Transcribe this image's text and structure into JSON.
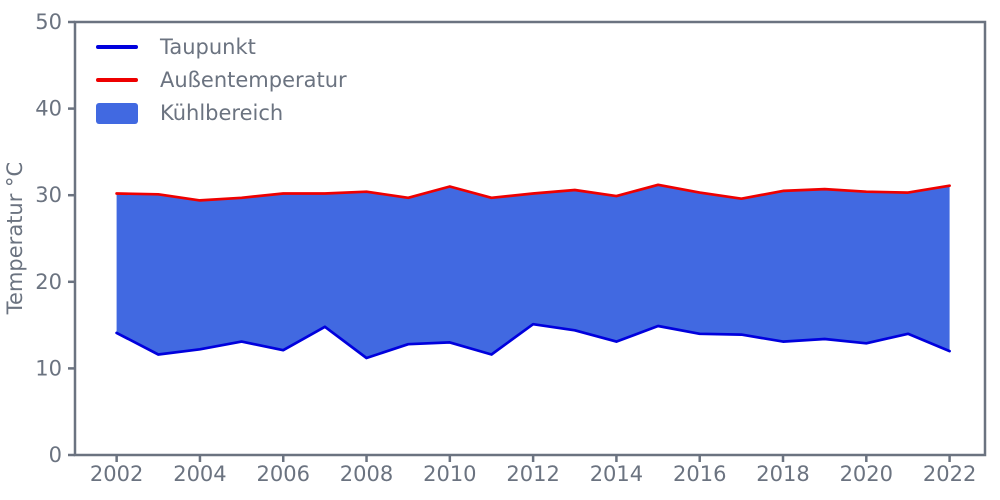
{
  "colors": {
    "taupunkt_line": "#0000dd",
    "aussentemperatur_line": "#ee0000",
    "kuehlbereich_fill": "#4169e1",
    "axis_and_text": "#6b7380",
    "background": "#ffffff"
  },
  "chart_data": {
    "type": "area",
    "title": "",
    "xlabel": "",
    "ylabel": "Temperatur °C",
    "xlim": [
      2001,
      2022.85
    ],
    "ylim": [
      0,
      50
    ],
    "xticks": [
      2002,
      2004,
      2006,
      2008,
      2010,
      2012,
      2014,
      2016,
      2018,
      2020,
      2022
    ],
    "yticks": [
      0,
      10,
      20,
      30,
      40,
      50
    ],
    "grid": false,
    "legend_position": "upper left",
    "x": [
      2002,
      2003,
      2004,
      2005,
      2006,
      2007,
      2008,
      2009,
      2010,
      2011,
      2012,
      2013,
      2014,
      2015,
      2016,
      2017,
      2018,
      2019,
      2020,
      2021,
      2022
    ],
    "series": [
      {
        "name": "Taupunkt",
        "color": "#0000dd",
        "values": [
          14.1,
          11.6,
          12.2,
          13.1,
          12.1,
          14.8,
          11.2,
          12.8,
          13.0,
          11.6,
          15.1,
          14.4,
          13.1,
          14.9,
          14.0,
          13.9,
          13.1,
          13.4,
          12.9,
          14.0,
          12.0
        ]
      },
      {
        "name": "Außentemperatur",
        "color": "#ee0000",
        "values": [
          30.2,
          30.1,
          29.4,
          29.7,
          30.2,
          30.2,
          30.4,
          29.7,
          31.0,
          29.7,
          30.2,
          30.6,
          29.9,
          31.2,
          30.3,
          29.6,
          30.5,
          30.7,
          30.4,
          30.3,
          31.1
        ]
      }
    ],
    "fill": {
      "name": "Kühlbereich",
      "color": "#4169e1",
      "between": [
        "Taupunkt",
        "Außentemperatur"
      ]
    }
  }
}
